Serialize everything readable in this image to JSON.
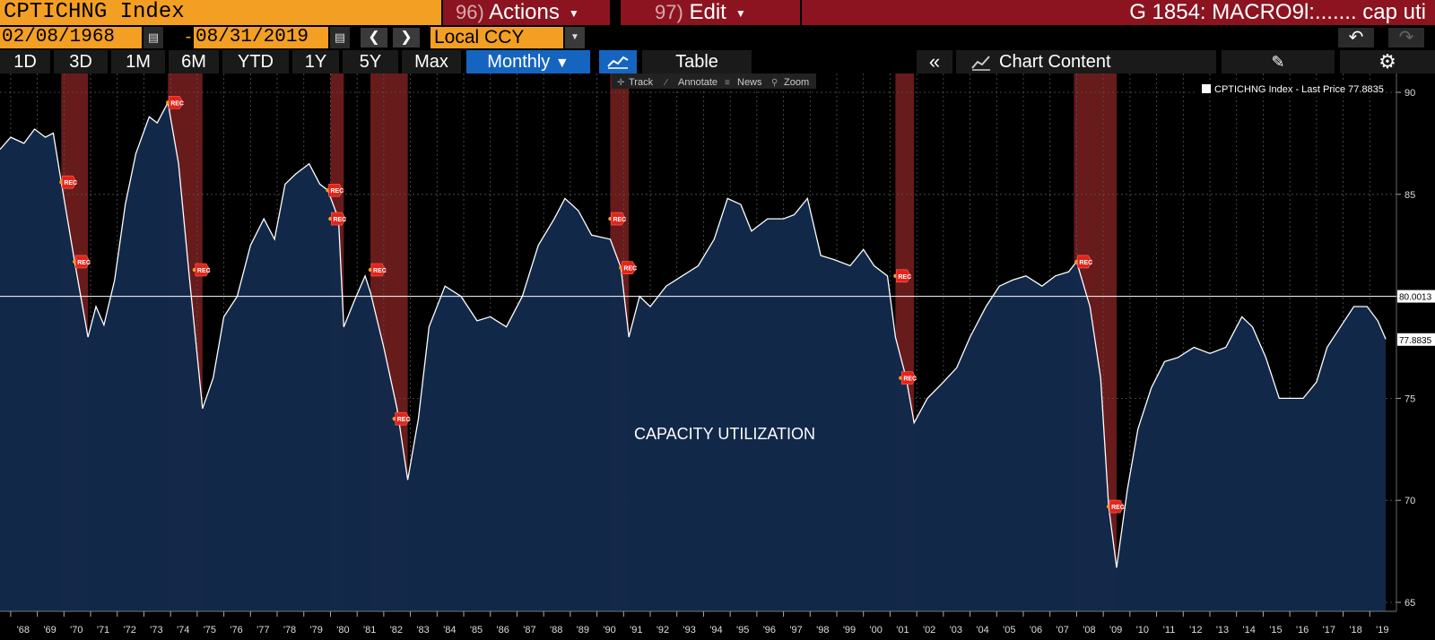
{
  "header": {
    "ticker": "CPTICHNG Index",
    "actions": {
      "num": "96)",
      "label": "Actions"
    },
    "edit": {
      "num": "97)",
      "label": "Edit"
    },
    "title": "G 1854: MACRO9l:....... cap uti"
  },
  "range": {
    "start": "02/08/1968",
    "separator": "-",
    "end": "08/31/2019",
    "currency": "Local CCY"
  },
  "toolbar": {
    "periods": [
      "1D",
      "3D",
      "1M",
      "6M",
      "YTD",
      "1Y",
      "5Y",
      "Max"
    ],
    "frequency": "Monthly",
    "table_label": "Table",
    "chart_content_label": "Chart Content"
  },
  "chart_tools": [
    "Track",
    "Annotate",
    "News",
    "Zoom"
  ],
  "icons": {
    "calendar": "calendar-icon",
    "prev": "chevron-left-icon",
    "next": "chevron-right-icon",
    "undo": "undo-icon",
    "redo": "redo-icon",
    "line_chart": "line-chart-icon",
    "collapse": "double-chevron-left-icon",
    "chart_content": "chart-content-icon",
    "edit_pen": "pen-icon",
    "settings": "gear-icon"
  },
  "colors": {
    "bloomberg_orange": "#f39f24",
    "header_red": "#8b1420",
    "active_blue": "#1565c0",
    "area_fill": "#12294a",
    "recession_band": "#7a2020",
    "line": "#ffffff"
  },
  "chart_data": {
    "type": "area",
    "legend": {
      "label": "CPTICHNG Index - Last Price 77.8835",
      "position": "top-right"
    },
    "annotation": "CAPACITY UTILIZATION",
    "ylim": [
      65,
      90
    ],
    "y_ticks": [
      65,
      70,
      75,
      80,
      85,
      90
    ],
    "xlim": [
      1967.6,
      2020.0
    ],
    "x_tick_labels": [
      "'68",
      "'69",
      "'70",
      "'71",
      "'72",
      "'73",
      "'74",
      "'75",
      "'76",
      "'77",
      "'78",
      "'79",
      "'80",
      "'81",
      "'82",
      "'83",
      "'84",
      "'85",
      "'86",
      "'87",
      "'88",
      "'89",
      "'90",
      "'91",
      "'92",
      "'93",
      "'94",
      "'95",
      "'96",
      "'97",
      "'98",
      "'99",
      "'00",
      "'01",
      "'02",
      "'03",
      "'04",
      "'05",
      "'06",
      "'07",
      "'08",
      "'09",
      "'10",
      "'11",
      "'12",
      "'13",
      "'14",
      "'15",
      "'16",
      "'17",
      "'18",
      "'19"
    ],
    "horizontal_line": {
      "value": 80.0013,
      "label": "80.0013"
    },
    "last_value": {
      "value": 77.8835,
      "label": "77.8835"
    },
    "grid": true,
    "recessions": [
      {
        "start": 1969.9,
        "end": 1970.9
      },
      {
        "start": 1973.9,
        "end": 1975.2
      },
      {
        "start": 1980.0,
        "end": 1980.5
      },
      {
        "start": 1981.5,
        "end": 1982.9
      },
      {
        "start": 1990.5,
        "end": 1991.2
      },
      {
        "start": 2001.2,
        "end": 2001.9
      },
      {
        "start": 2007.9,
        "end": 2009.5
      }
    ],
    "recession_marker_label": "REC",
    "recession_markers": [
      {
        "x": 1969.9,
        "y": 85.6
      },
      {
        "x": 1970.4,
        "y": 81.7
      },
      {
        "x": 1973.9,
        "y": 89.5
      },
      {
        "x": 1974.9,
        "y": 81.3
      },
      {
        "x": 1979.9,
        "y": 85.2
      },
      {
        "x": 1980.0,
        "y": 83.8
      },
      {
        "x": 1981.5,
        "y": 81.3
      },
      {
        "x": 1982.4,
        "y": 74.0
      },
      {
        "x": 1990.5,
        "y": 83.8
      },
      {
        "x": 1990.9,
        "y": 81.4
      },
      {
        "x": 2001.2,
        "y": 81.0
      },
      {
        "x": 2001.4,
        "y": 76.0
      },
      {
        "x": 2008.0,
        "y": 81.7
      },
      {
        "x": 2009.2,
        "y": 69.7
      }
    ],
    "x": [
      1967.6,
      1968.0,
      1968.5,
      1968.9,
      1969.3,
      1969.6,
      1969.9,
      1970.4,
      1970.9,
      1971.2,
      1971.5,
      1971.9,
      1972.3,
      1972.7,
      1973.2,
      1973.5,
      1973.9,
      1974.3,
      1974.7,
      1975.2,
      1975.6,
      1976.0,
      1976.5,
      1977.0,
      1977.5,
      1977.9,
      1978.3,
      1978.7,
      1979.2,
      1979.6,
      1979.9,
      1980.3,
      1980.5,
      1980.9,
      1981.3,
      1981.5,
      1982.0,
      1982.5,
      1982.9,
      1983.3,
      1983.7,
      1984.3,
      1984.9,
      1985.5,
      1986.0,
      1986.6,
      1987.2,
      1987.8,
      1988.4,
      1988.8,
      1989.3,
      1989.8,
      1990.5,
      1990.9,
      1991.2,
      1991.6,
      1992.0,
      1992.6,
      1993.2,
      1993.8,
      1994.4,
      1994.9,
      1995.4,
      1995.8,
      1996.4,
      1997.0,
      1997.4,
      1997.9,
      1998.4,
      1998.9,
      1999.5,
      2000.0,
      2000.4,
      2000.9,
      2001.2,
      2001.6,
      2001.9,
      2002.4,
      2003.0,
      2003.5,
      2004.0,
      2004.6,
      2005.1,
      2005.6,
      2006.1,
      2006.7,
      2007.2,
      2007.7,
      2008.0,
      2008.5,
      2008.9,
      2009.2,
      2009.5,
      2009.9,
      2010.3,
      2010.8,
      2011.3,
      2011.8,
      2012.4,
      2013.0,
      2013.6,
      2014.2,
      2014.6,
      2015.1,
      2015.6,
      2016.1,
      2016.5,
      2017.0,
      2017.4,
      2017.9,
      2018.4,
      2018.9,
      2019.3,
      2019.6
    ],
    "y": [
      87.2,
      87.8,
      87.5,
      88.2,
      87.8,
      88.0,
      85.6,
      81.7,
      78.0,
      79.5,
      78.6,
      80.8,
      84.5,
      87.0,
      88.8,
      88.5,
      89.5,
      86.5,
      81.0,
      74.5,
      76.0,
      79.0,
      80.0,
      82.5,
      83.8,
      82.8,
      85.5,
      86.0,
      86.5,
      85.5,
      85.2,
      83.8,
      78.5,
      79.8,
      81.0,
      80.2,
      77.5,
      74.5,
      71.0,
      74.0,
      78.5,
      80.5,
      80.0,
      78.8,
      79.0,
      78.5,
      80.0,
      82.5,
      83.8,
      84.8,
      84.2,
      83.0,
      82.8,
      81.4,
      78.0,
      80.0,
      79.5,
      80.5,
      81.0,
      81.5,
      82.8,
      84.8,
      84.5,
      83.2,
      83.8,
      83.8,
      84.0,
      84.8,
      82.0,
      81.8,
      81.5,
      82.3,
      81.5,
      81.0,
      78.0,
      76.0,
      73.8,
      75.0,
      75.8,
      76.5,
      78.0,
      79.5,
      80.5,
      80.8,
      81.0,
      80.5,
      81.0,
      81.2,
      81.7,
      79.5,
      76.0,
      69.7,
      66.7,
      70.5,
      73.5,
      75.5,
      76.8,
      77.0,
      77.5,
      77.2,
      77.5,
      79.0,
      78.5,
      77.0,
      75.0,
      75.0,
      75.0,
      75.8,
      77.5,
      78.5,
      79.5,
      79.5,
      78.8,
      77.9
    ]
  }
}
